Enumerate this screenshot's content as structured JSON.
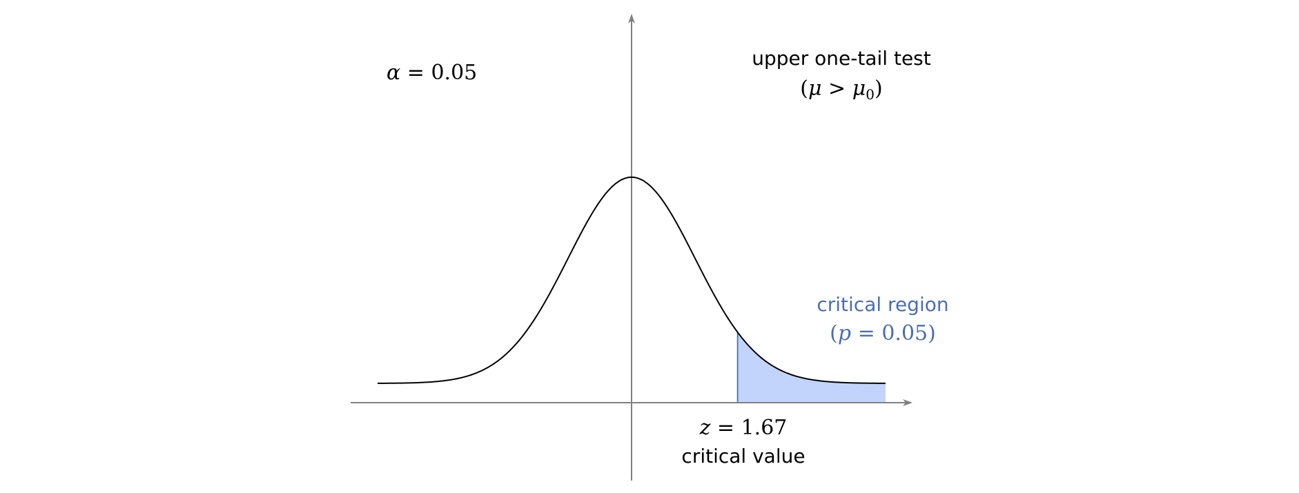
{
  "annotations": {
    "alpha_symbol": "α",
    "alpha_equals": " = 0.05",
    "test_title": "upper one-tail test",
    "hypothesis_open": "(",
    "hypothesis_mu": "μ",
    "hypothesis_gt": " > ",
    "hypothesis_mu0": "μ",
    "hypothesis_sub": "0",
    "hypothesis_close": ")",
    "region_label": "critical region",
    "region_open": "(",
    "region_p": "p",
    "region_equals": " = 0.05)",
    "critical_z": "z",
    "critical_equals": " = 1.67",
    "critical_label": "critical value"
  },
  "chart_data": {
    "type": "area",
    "distribution": "standard normal density",
    "x_range": [
      -4,
      4
    ],
    "critical_value": 1.67,
    "tail": "upper",
    "alpha": 0.05,
    "colors": {
      "axis": "#808080",
      "curve": "#000000",
      "region_fill": "#c2d4fb",
      "region_edge": "#4a6db8",
      "region_text": "#4a6db8",
      "text": "#000000"
    }
  }
}
